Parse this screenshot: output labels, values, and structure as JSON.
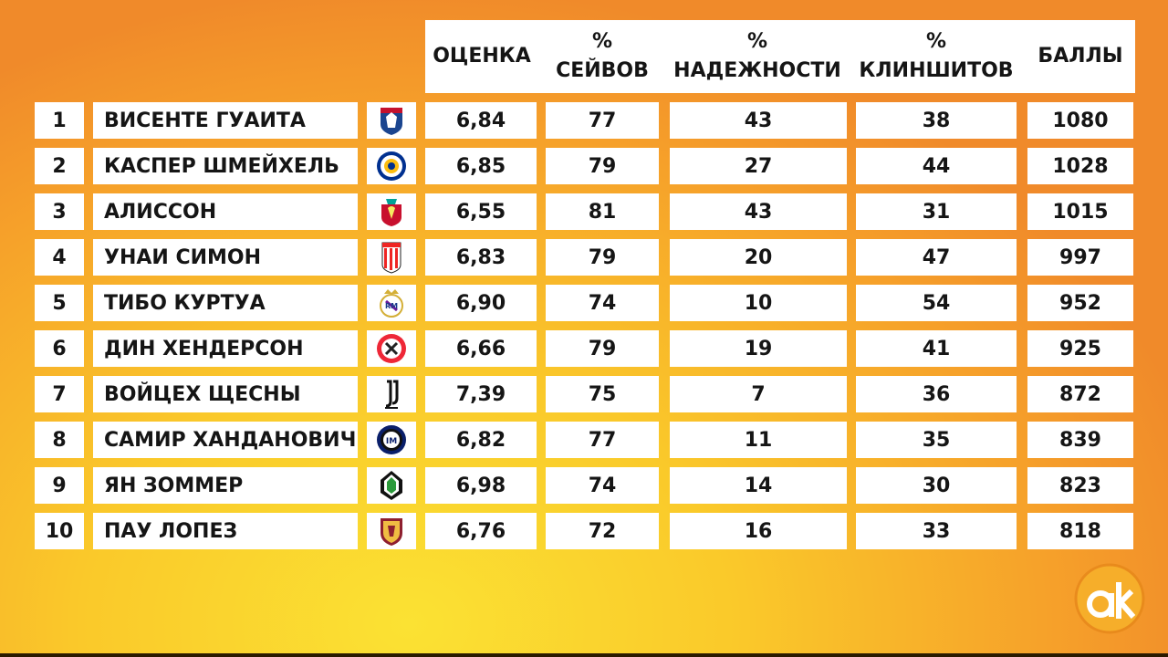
{
  "header": {
    "rating": "ОЦЕНКА",
    "saves_pct_sym": "%",
    "saves": "СЕЙВОВ",
    "reliability_pct_sym": "%",
    "reliability": "НАДЕЖНОСТИ",
    "cleansheets_pct_sym": "%",
    "cleansheets": "КЛИНШИТОВ",
    "points": "БАЛЛЫ"
  },
  "rows": [
    {
      "rank": "1",
      "name": "ВИСЕНТЕ ГУАИТА",
      "club_icon": "crystal-palace-crest-icon",
      "rating": "6,84",
      "saves": "77",
      "reliability": "43",
      "cleansheets": "38",
      "points": "1080"
    },
    {
      "rank": "2",
      "name": "КАСПЕР ШМЕЙХЕЛЬ",
      "club_icon": "leicester-city-crest-icon",
      "rating": "6,85",
      "saves": "79",
      "reliability": "27",
      "cleansheets": "44",
      "points": "1028"
    },
    {
      "rank": "3",
      "name": "АЛИССОН",
      "club_icon": "liverpool-crest-icon",
      "rating": "6,55",
      "saves": "81",
      "reliability": "43",
      "cleansheets": "31",
      "points": "1015"
    },
    {
      "rank": "4",
      "name": "УНАИ СИМОН",
      "club_icon": "athletic-bilbao-crest-icon",
      "rating": "6,83",
      "saves": "79",
      "reliability": "20",
      "cleansheets": "47",
      "points": "997"
    },
    {
      "rank": "5",
      "name": "ТИБО  КУРТУА",
      "club_icon": "real-madrid-crest-icon",
      "rating": "6,90",
      "saves": "74",
      "reliability": "10",
      "cleansheets": "54",
      "points": "952"
    },
    {
      "rank": "6",
      "name": "ДИН ХЕНДЕРСОН",
      "club_icon": "sheffield-united-crest-icon",
      "rating": "6,66",
      "saves": "79",
      "reliability": "19",
      "cleansheets": "41",
      "points": "925"
    },
    {
      "rank": "7",
      "name": "ВОЙЦЕХ ЩЕСНЫ",
      "club_icon": "juventus-crest-icon",
      "rating": "7,39",
      "saves": "75",
      "reliability": "7",
      "cleansheets": "36",
      "points": "872"
    },
    {
      "rank": "8",
      "name": "САМИР ХАНДАНОВИЧ",
      "club_icon": "inter-crest-icon",
      "rating": "6,82",
      "saves": "77",
      "reliability": "11",
      "cleansheets": "35",
      "points": "839"
    },
    {
      "rank": "9",
      "name": "ЯН ЗОММЕР",
      "club_icon": "gladbach-crest-icon",
      "rating": "6,98",
      "saves": "74",
      "reliability": "14",
      "cleansheets": "30",
      "points": "823"
    },
    {
      "rank": "10",
      "name": "ПАУ ЛОПЕЗ",
      "club_icon": "roma-crest-icon",
      "rating": "6,76",
      "saves": "72",
      "reliability": "16",
      "cleansheets": "33",
      "points": "818"
    }
  ],
  "brand": {
    "logo_icon": "ak-brand-logo-icon"
  },
  "colors": {
    "bg_yellow": "#fbe233",
    "bg_orange": "#f08a2a",
    "cell": "#ffffff",
    "text": "#151515"
  }
}
